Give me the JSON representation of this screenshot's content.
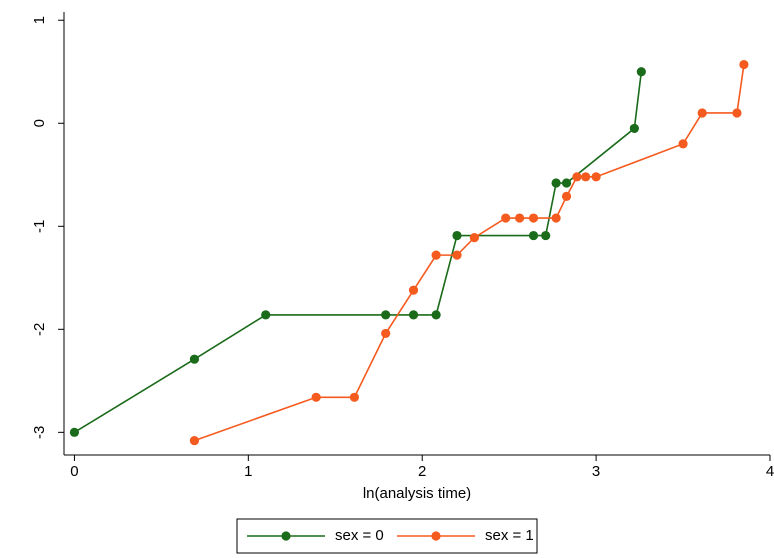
{
  "chart_data": {
    "type": "line",
    "x_label": "ln(analysis time)",
    "xlim": [
      -0.06,
      4.0
    ],
    "ylim": [
      -3.22,
      1.08
    ],
    "xticks": [
      0,
      1,
      2,
      3,
      4
    ],
    "yticks": [
      -3,
      -2,
      -1,
      0,
      1
    ],
    "grid": false,
    "legend": "bottom",
    "series": [
      {
        "name": "sex = 0",
        "color": "#1a6b1a",
        "x": [
          0,
          0.69,
          1.1,
          1.79,
          1.95,
          2.08,
          2.2,
          2.64,
          2.71,
          2.77,
          2.83,
          3.22,
          3.26
        ],
        "values": [
          -3.0,
          -2.29,
          -1.86,
          -1.86,
          -1.86,
          -1.86,
          -1.09,
          -1.09,
          -1.09,
          -0.58,
          -0.58,
          -0.05,
          0.5
        ]
      },
      {
        "name": "sex = 1",
        "color": "#f55a1e",
        "x": [
          0.69,
          1.39,
          1.61,
          1.79,
          1.95,
          2.08,
          2.2,
          2.3,
          2.48,
          2.56,
          2.64,
          2.77,
          2.83,
          2.89,
          2.94,
          3.0,
          3.5,
          3.61,
          3.81,
          3.85
        ],
        "values": [
          -3.08,
          -2.66,
          -2.66,
          -2.04,
          -1.62,
          -1.28,
          -1.28,
          -1.11,
          -0.92,
          -0.92,
          -0.92,
          -0.92,
          -0.71,
          -0.52,
          -0.52,
          -0.52,
          -0.2,
          0.1,
          0.1,
          0.57
        ]
      }
    ]
  }
}
